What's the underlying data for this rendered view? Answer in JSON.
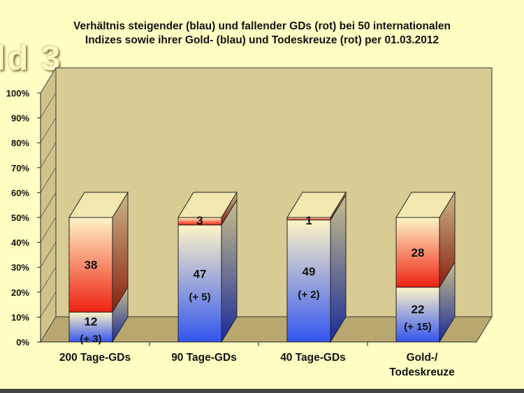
{
  "title_line1": "Verhältnis steigender (blau) und fallender GDs (rot) bei 50 internationalen",
  "title_line2": "Indizes sowie ihrer Gold- (blau) und Todeskreuze (rot) per 01.03.2012",
  "watermark": "ld 3",
  "colors": {
    "rising_blue": "#3355ee",
    "falling_red": "#ee2211",
    "cream": "#fff5c8",
    "wall": "#d8cc94",
    "floor": "#b8a870",
    "background": "#ffffc4"
  },
  "chart_data": {
    "type": "bar",
    "stacked": true,
    "three_d": true,
    "categories": [
      "200 Tage-GDs",
      "90 Tage-GDs",
      "40 Tage-GDs",
      "Gold-/\nTodeskreuze"
    ],
    "series": [
      {
        "color": "blue",
        "values": [
          12,
          47,
          49,
          22
        ],
        "changes": [
          "(+ 3)",
          "(+ 5)",
          "(+ 2)",
          "(+ 15)"
        ]
      },
      {
        "color": "red",
        "values": [
          38,
          3,
          1,
          28
        ]
      }
    ],
    "yticks": [
      "0%",
      "10%",
      "20%",
      "30%",
      "40%",
      "50%",
      "60%",
      "70%",
      "80%",
      "90%",
      "100%"
    ],
    "ylim": [
      0,
      100
    ],
    "grid": false,
    "legend": "none"
  }
}
